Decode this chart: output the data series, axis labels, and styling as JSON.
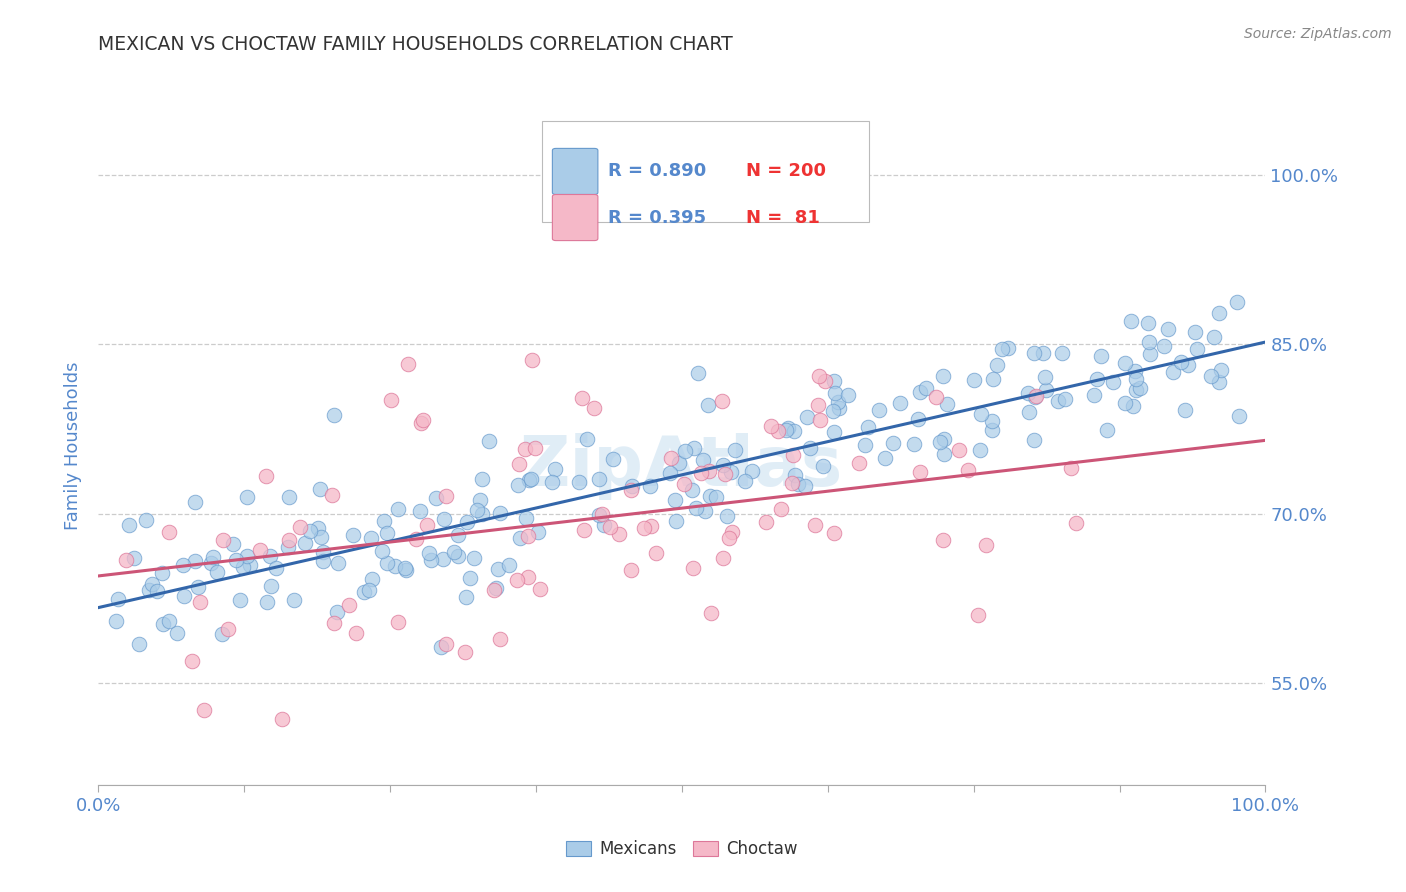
{
  "title": "MEXICAN VS CHOCTAW FAMILY HOUSEHOLDS CORRELATION CHART",
  "source_text": "Source: ZipAtlas.com",
  "ylabel": "Family Households",
  "watermark": "ZipAtlas",
  "blue_R": 0.89,
  "blue_N": 200,
  "pink_R": 0.395,
  "pink_N": 81,
  "xmin": 0.0,
  "xmax": 1.0,
  "ymin": 0.46,
  "ymax": 1.06,
  "yticks": [
    0.55,
    0.7,
    0.85,
    1.0
  ],
  "ytick_labels": [
    "55.0%",
    "70.0%",
    "85.0%",
    "100.0%"
  ],
  "xticks": [
    0.0,
    0.125,
    0.25,
    0.375,
    0.5,
    0.625,
    0.75,
    0.875,
    1.0
  ],
  "xtick_labels": [
    "0.0%",
    "",
    "",
    "",
    "",
    "",
    "",
    "",
    "100.0%"
  ],
  "blue_color": "#aacce8",
  "blue_edge_color": "#6699cc",
  "blue_line_color": "#3366aa",
  "pink_color": "#f5b8c8",
  "pink_edge_color": "#dd7799",
  "pink_line_color": "#cc5577",
  "title_color": "#333333",
  "axis_label_color": "#5588cc",
  "grid_color": "#cccccc",
  "legend_R_color": "#5588cc",
  "legend_N_color": "#ee3333",
  "background_color": "#ffffff",
  "blue_seed": 42,
  "pink_seed": 123,
  "blue_trend_intercept": 0.617,
  "blue_trend_slope": 0.235,
  "pink_trend_intercept": 0.645,
  "pink_trend_slope": 0.12,
  "blue_noise": 0.032,
  "pink_noise": 0.068
}
